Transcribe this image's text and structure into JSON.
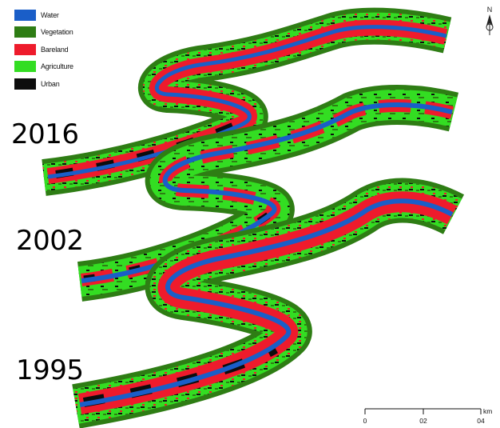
{
  "legend": {
    "items": [
      {
        "label": "Water",
        "color": "#1a5ec8"
      },
      {
        "label": "Vegetation",
        "color": "#2e7d14"
      },
      {
        "label": "Bareland",
        "color": "#ee1b2c"
      },
      {
        "label": "Agriculture",
        "color": "#33dd22"
      },
      {
        "label": "Urban",
        "color": "#0d0d0d"
      }
    ]
  },
  "years": {
    "label_2016": "2016",
    "label_2002": "2002",
    "label_1995": "1995"
  },
  "north_arrow": {
    "letter": "N",
    "icon": "north-arrow-icon"
  },
  "scale_bar": {
    "label_0": "0",
    "label_1": "02",
    "label_2": "04",
    "unit": "km"
  }
}
